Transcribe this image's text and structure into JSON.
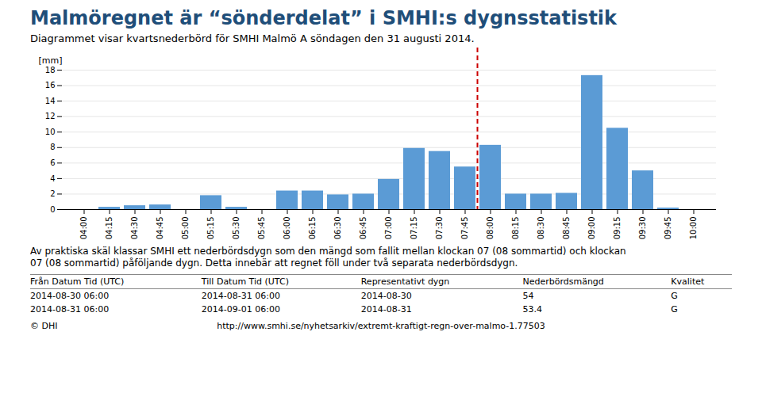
{
  "chart_data": {
    "type": "bar",
    "title": "Malmöregnet är “sönderdelat” i SMHI:s dygnsstatistik",
    "subtitle": "Diagrammet visar kvartsnederbörd för SMHI Malmö A söndagen den 31 augusti 2014.",
    "ylabel": "[mm]",
    "categories": [
      "04:00",
      "04:15",
      "04:30",
      "04:45",
      "05:00",
      "05:15",
      "05:30",
      "05:45",
      "06:00",
      "06:15",
      "06:30",
      "06:45",
      "07:00",
      "07:15",
      "07:30",
      "07:45",
      "08:00",
      "08:15",
      "08:30",
      "08:45",
      "09:00",
      "09:15",
      "09:30",
      "09:45",
      "10:00"
    ],
    "values": [
      0.0,
      0.3,
      0.5,
      0.6,
      0.0,
      1.8,
      0.3,
      0.0,
      2.4,
      2.4,
      1.9,
      2.0,
      3.9,
      7.9,
      7.5,
      5.5,
      8.3,
      2.0,
      2.0,
      2.1,
      17.3,
      10.5,
      5.0,
      0.2,
      0.0
    ],
    "color": "#5b9bd5",
    "ylim": [
      0,
      18
    ],
    "yticks": [
      0,
      2,
      4,
      6,
      8,
      10,
      12,
      14,
      16,
      18
    ],
    "grid": true,
    "marker_line": {
      "before": "08:00",
      "color": "#cc0000",
      "line_style": "dashed"
    },
    "annotations": [
      "Av praktiska skäl klassar SMHI ett nederbördsdygn som den mängd som fallit mellan klockan 07 (08 sommartid) och klockan",
      "07 (08 sommartid) påföljande dygn. Detta innebär att regnet föll under två separata nederbördsdygn."
    ],
    "table": {
      "headers": [
        "Från Datum Tid (UTC)",
        "Till Datum Tid (UTC)",
        "Representativt dygn",
        "Nederbördsmängd",
        "Kvalitet"
      ],
      "rows": [
        [
          "2014-08-30 06:00",
          "2014-08-31 06:00",
          "2014-08-30",
          "54",
          "G"
        ],
        [
          "2014-08-31 06:00",
          "2014-09-01 06:00",
          "2014-08-31",
          "53.4",
          "G"
        ]
      ]
    },
    "footer": [
      "http://www.smhi.se/nyhetsarkiv/extremt-kraftigt-regn-over-malmo-1.77503",
      "© DHI"
    ]
  }
}
